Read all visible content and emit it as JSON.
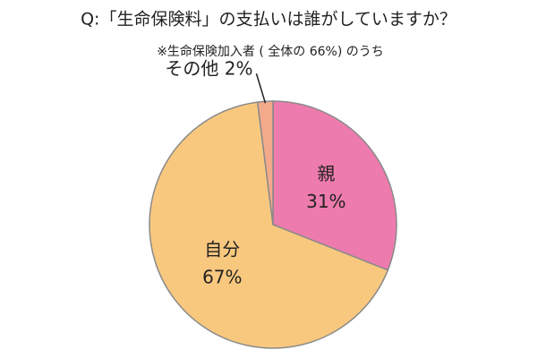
{
  "chart_data": {
    "type": "pie",
    "title": "Q:「生命保険料」の支払いは誰がしていますか？",
    "subtitle": "※生命保険加入者 ( 全体の 66%) のうち",
    "categories": [
      "親",
      "自分",
      "その他"
    ],
    "values": [
      31,
      67,
      2
    ],
    "value_labels": [
      "31%",
      "67%",
      "2%"
    ],
    "colors": [
      "#ee7bad",
      "#f9c87f",
      "#f3aa8b"
    ]
  }
}
